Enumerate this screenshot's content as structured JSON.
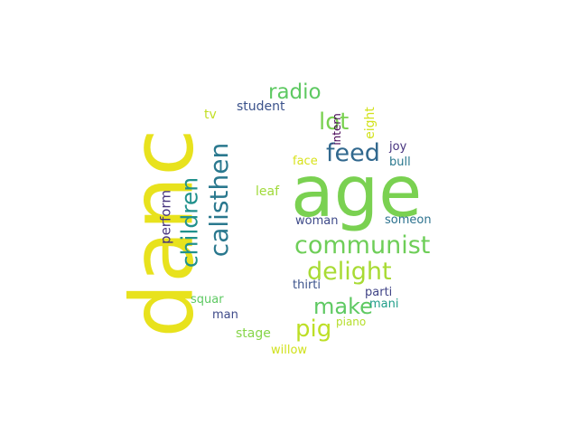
{
  "words": [
    {
      "text": "danc",
      "color": "#e8e21d",
      "orientation": "vertical"
    },
    {
      "text": "age",
      "color": "#7ad151",
      "orientation": "horizontal"
    },
    {
      "text": "feed",
      "color": "#31688e",
      "orientation": "horizontal"
    },
    {
      "text": "communist",
      "color": "#6ece58",
      "orientation": "horizontal"
    },
    {
      "text": "delight",
      "color": "#a8db34",
      "orientation": "horizontal"
    },
    {
      "text": "calisthen",
      "color": "#2a788e",
      "orientation": "vertical"
    },
    {
      "text": "children",
      "color": "#21918c",
      "orientation": "vertical"
    },
    {
      "text": "radio",
      "color": "#5ec962",
      "orientation": "horizontal"
    },
    {
      "text": "lot",
      "color": "#7ad151",
      "orientation": "horizontal"
    },
    {
      "text": "make",
      "color": "#5ec962",
      "orientation": "horizontal"
    },
    {
      "text": "pig",
      "color": "#bddf26",
      "orientation": "horizontal"
    },
    {
      "text": "perform",
      "color": "#46337e",
      "orientation": "vertical"
    },
    {
      "text": "student",
      "color": "#3b528b",
      "orientation": "horizontal"
    },
    {
      "text": "intern",
      "color": "#440154",
      "orientation": "vertical"
    },
    {
      "text": "eight",
      "color": "#d2e21b",
      "orientation": "vertical"
    },
    {
      "text": "joy",
      "color": "#46327e",
      "orientation": "horizontal"
    },
    {
      "text": "face",
      "color": "#d8e219",
      "orientation": "horizontal"
    },
    {
      "text": "bull",
      "color": "#2a788e",
      "orientation": "horizontal"
    },
    {
      "text": "tv",
      "color": "#c2df23",
      "orientation": "horizontal"
    },
    {
      "text": "leaf",
      "color": "#a0da39",
      "orientation": "horizontal"
    },
    {
      "text": "woman",
      "color": "#3e4a89",
      "orientation": "horizontal"
    },
    {
      "text": "someon",
      "color": "#2c728e",
      "orientation": "horizontal"
    },
    {
      "text": "thirti",
      "color": "#3b528b",
      "orientation": "horizontal"
    },
    {
      "text": "parti",
      "color": "#414487",
      "orientation": "horizontal"
    },
    {
      "text": "squar",
      "color": "#5ec962",
      "orientation": "horizontal"
    },
    {
      "text": "mani",
      "color": "#1f9e89",
      "orientation": "horizontal"
    },
    {
      "text": "man",
      "color": "#3e4a89",
      "orientation": "horizontal"
    },
    {
      "text": "piano",
      "color": "#b5de2b",
      "orientation": "horizontal"
    },
    {
      "text": "stage",
      "color": "#86d549",
      "orientation": "horizontal"
    },
    {
      "text": "willow",
      "color": "#d0e11c",
      "orientation": "horizontal"
    }
  ]
}
